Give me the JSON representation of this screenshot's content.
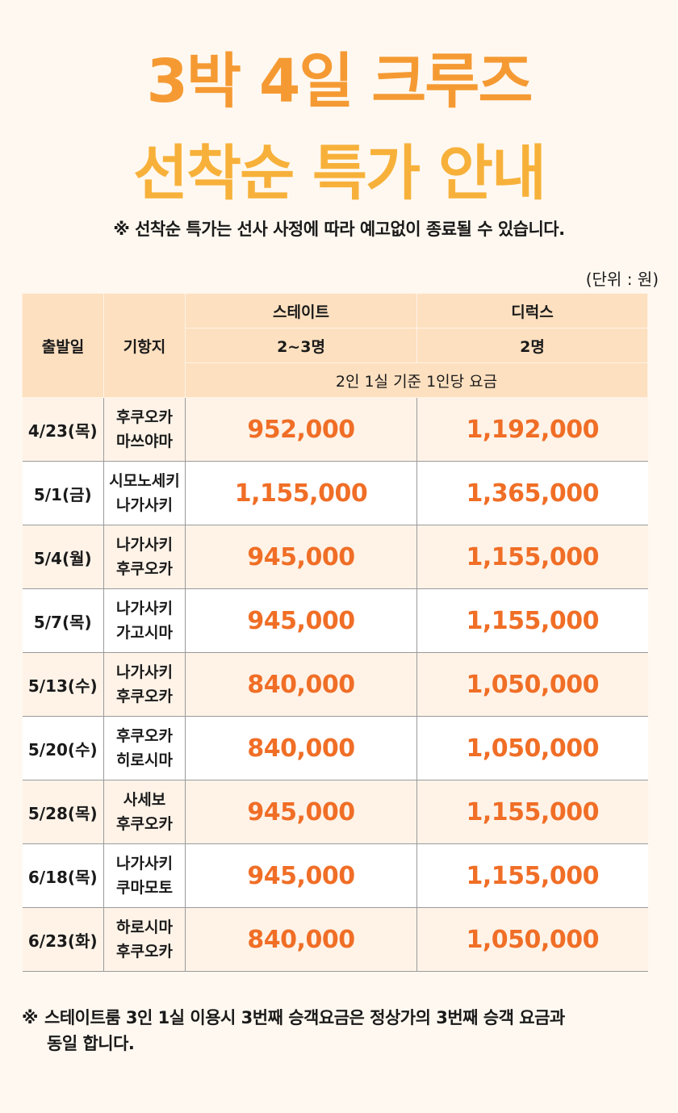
{
  "heading": {
    "line1": "3박 4일 크루즈",
    "line2": "선착순 특가 안내"
  },
  "notice": "※ 선착순 특가는 선사 사정에 따라 예고없이 종료될 수 있습니다.",
  "unit": "(단위 : 원)",
  "table": {
    "headers": {
      "departure": "출발일",
      "destination": "기항지",
      "state": "스테이트",
      "deluxe": "디럭스",
      "state_capacity": "2~3명",
      "deluxe_capacity": "2명",
      "basis": "2인 1실 기준 1인당 요금"
    },
    "rows": [
      {
        "date": "4/23(목)",
        "port1": "후쿠오카",
        "port2": "마쓰야마",
        "state": "952,000",
        "deluxe": "1,192,000"
      },
      {
        "date": "5/1(금)",
        "port1": "시모노세키",
        "port2": "나가사키",
        "state": "1,155,000",
        "deluxe": "1,365,000"
      },
      {
        "date": "5/4(월)",
        "port1": "나가사키",
        "port2": "후쿠오카",
        "state": "945,000",
        "deluxe": "1,155,000"
      },
      {
        "date": "5/7(목)",
        "port1": "나가사키",
        "port2": "가고시마",
        "state": "945,000",
        "deluxe": "1,155,000"
      },
      {
        "date": "5/13(수)",
        "port1": "나가사키",
        "port2": "후쿠오카",
        "state": "840,000",
        "deluxe": "1,050,000"
      },
      {
        "date": "5/20(수)",
        "port1": "후쿠오카",
        "port2": "히로시마",
        "state": "840,000",
        "deluxe": "1,050,000"
      },
      {
        "date": "5/28(목)",
        "port1": "사세보",
        "port2": "후쿠오카",
        "state": "945,000",
        "deluxe": "1,155,000"
      },
      {
        "date": "6/18(목)",
        "port1": "나가사키",
        "port2": "쿠마모토",
        "state": "945,000",
        "deluxe": "1,155,000"
      },
      {
        "date": "6/23(화)",
        "port1": "하로시마",
        "port2": "후쿠오카",
        "state": "840,000",
        "deluxe": "1,050,000"
      }
    ]
  },
  "footnote": {
    "mark": "※",
    "line1": "스테이트룸 3인 1실 이용시 3번째 승객요금은 정상가의 3번째 승객 요금과",
    "line2": "동일 합니다."
  },
  "colors": {
    "title_orange": "#f59a33",
    "price_orange": "#f06e26",
    "header_bg": "#fde0c0",
    "page_bg": "#fff8f0"
  }
}
